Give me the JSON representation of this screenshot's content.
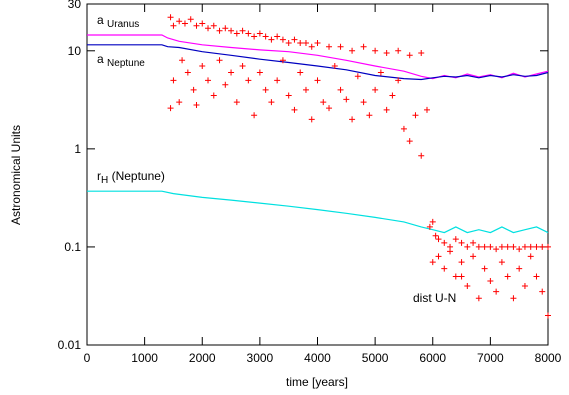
{
  "chart_data": {
    "type": "line",
    "xlabel": "time [years]",
    "ylabel": "Astronomical Units",
    "xlim": [
      0,
      8000
    ],
    "xticks": [
      0,
      1000,
      2000,
      3000,
      4000,
      5000,
      6000,
      7000,
      8000
    ],
    "ylim": [
      0.01,
      30
    ],
    "yticks": [
      0.01,
      0.1,
      1,
      10,
      30
    ],
    "ylog": true,
    "annotations": [
      {
        "text": "a",
        "sub": "Uranus"
      },
      {
        "text": "a",
        "sub": "Neptune"
      },
      {
        "text": "r",
        "sub": "H",
        "rest": " (Neptune)"
      },
      {
        "text": "dist U-N"
      }
    ],
    "series": [
      {
        "color": "#ff00ff",
        "style": "line",
        "x": [
          0,
          500,
          1000,
          1300,
          1400,
          1600,
          2000,
          2500,
          3000,
          3500,
          4000,
          4500,
          5000,
          5500,
          5800,
          6000,
          6200,
          6400,
          6600,
          6800,
          7000,
          7200,
          7400,
          7600,
          7800,
          8000
        ],
        "values": [
          14.5,
          14.5,
          14.5,
          14.5,
          13.5,
          12.5,
          11.5,
          10.8,
          10.2,
          9.8,
          9,
          8,
          7,
          6.2,
          5.5,
          5.2,
          5.6,
          5.3,
          5.8,
          5.4,
          5.7,
          5.3,
          5.9,
          5.4,
          5.8,
          6.2
        ]
      },
      {
        "color": "#0000c0",
        "style": "line",
        "x": [
          0,
          500,
          1000,
          1300,
          1400,
          1600,
          2000,
          2500,
          3000,
          3500,
          4000,
          4500,
          5000,
          5500,
          5800,
          6000,
          6200,
          6400,
          6600,
          6800,
          7000,
          7200,
          7400,
          7600,
          7800,
          8000
        ],
        "values": [
          11.5,
          11.5,
          11.5,
          11.5,
          11,
          10.8,
          9.8,
          9,
          8.2,
          7.6,
          7,
          6.4,
          5.6,
          5.2,
          5.1,
          5.3,
          5.5,
          5.4,
          5.6,
          5.3,
          5.6,
          5.4,
          5.7,
          5.5,
          5.6,
          6
        ]
      },
      {
        "color": "#00e0e0",
        "style": "line",
        "x": [
          0,
          500,
          1000,
          1300,
          1500,
          2000,
          2500,
          3000,
          3500,
          4000,
          4500,
          5000,
          5500,
          5800,
          6000,
          6200,
          6400,
          6600,
          6800,
          7000,
          7200,
          7400,
          7600,
          7800,
          8000
        ],
        "values": [
          0.37,
          0.37,
          0.37,
          0.37,
          0.35,
          0.32,
          0.3,
          0.28,
          0.26,
          0.24,
          0.22,
          0.2,
          0.18,
          0.16,
          0.15,
          0.14,
          0.16,
          0.14,
          0.15,
          0.14,
          0.16,
          0.14,
          0.15,
          0.16,
          0.14
        ]
      },
      {
        "color": "#ff0000",
        "style": "plus",
        "x": [
          1450,
          1500,
          1600,
          1700,
          1800,
          1900,
          2000,
          2100,
          2200,
          2300,
          2400,
          2500,
          2600,
          2700,
          2800,
          2900,
          3000,
          3100,
          3200,
          3300,
          3400,
          3500,
          3600,
          3700,
          3800,
          3900,
          4000,
          4200,
          4400,
          4600,
          4800,
          5000,
          5200,
          5400,
          5600,
          5800,
          1450,
          1500,
          1600,
          1650,
          1750,
          1850,
          1900,
          2000,
          2100,
          2200,
          2300,
          2400,
          2500,
          2600,
          2700,
          2800,
          2900,
          3000,
          3100,
          3200,
          3300,
          3400,
          3500,
          3600,
          3700,
          3800,
          3900,
          4000,
          4100,
          4200,
          4300,
          4400,
          4500,
          4600,
          4700,
          4800,
          4900,
          5000,
          5100,
          5200,
          5300,
          5400,
          5500,
          5600,
          5700,
          5800,
          5900,
          5950,
          6000,
          6050,
          6100,
          6200,
          6300,
          6400,
          6500,
          6600,
          6700,
          6800,
          6900,
          7000,
          7100,
          7200,
          7300,
          7400,
          7500,
          7600,
          7700,
          7800,
          7900,
          8000,
          6100,
          6200,
          6300,
          6400,
          6500,
          6600,
          6700,
          6800,
          6900,
          7000,
          7100,
          7200,
          7300,
          7400,
          7500,
          7600,
          7700,
          7800,
          7900,
          8000,
          6000,
          6500
        ],
        "values": [
          22,
          18,
          20,
          19,
          21,
          18,
          19,
          17,
          18,
          16,
          17,
          16,
          15,
          16,
          15,
          14,
          15,
          14,
          13,
          14,
          13,
          12,
          13,
          12,
          12,
          11,
          12,
          11,
          11,
          10,
          11,
          10,
          9.5,
          10,
          9,
          9.5,
          2.6,
          5,
          3,
          8,
          6,
          4,
          2.8,
          7,
          5,
          3.5,
          8,
          4.5,
          6,
          3,
          7,
          5,
          2.2,
          6,
          4,
          3,
          5,
          8,
          3.5,
          2.5,
          6,
          4,
          2,
          5,
          3,
          2.6,
          7,
          4,
          3.2,
          2,
          5.5,
          3,
          2.2,
          4,
          6,
          2.5,
          3.5,
          5,
          1.6,
          1.2,
          2.2,
          0.85,
          2.5,
          0.16,
          0.18,
          0.13,
          0.12,
          0.11,
          0.1,
          0.12,
          0.11,
          0.1,
          0.11,
          0.1,
          0.1,
          0.1,
          0.095,
          0.1,
          0.1,
          0.1,
          0.095,
          0.1,
          0.1,
          0.1,
          0.1,
          0.1,
          0.08,
          0.06,
          0.09,
          0.05,
          0.07,
          0.04,
          0.08,
          0.03,
          0.06,
          0.045,
          0.035,
          0.07,
          0.05,
          0.03,
          0.06,
          0.04,
          0.08,
          0.05,
          0.035,
          0.02,
          0.07,
          0.05
        ]
      }
    ]
  }
}
